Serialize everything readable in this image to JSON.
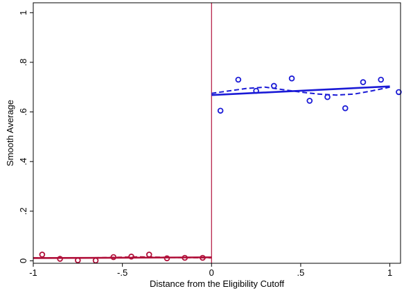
{
  "chart_data": {
    "type": "scatter",
    "title": "",
    "xlabel": "Distance from the Eligibility Cutoff",
    "ylabel": "Smooth Average",
    "xlim": [
      -1,
      1
    ],
    "ylim": [
      0,
      1
    ],
    "x_ticks": [
      -1,
      -0.5,
      0,
      0.5,
      1
    ],
    "x_tick_labels": [
      "-1",
      "-.5",
      "0",
      ".5",
      "1"
    ],
    "y_ticks": [
      0,
      0.2,
      0.4,
      0.6,
      0.8,
      1
    ],
    "y_tick_labels": [
      "0",
      ".2",
      ".4",
      ".6",
      ".8",
      "1"
    ],
    "grid": false,
    "legend": "none",
    "cutoff_x": 0,
    "cutoff_color": "#b0103a",
    "series": [
      {
        "side": "left",
        "color": "#b0103a",
        "points": [
          {
            "x": -0.95,
            "y": 0.025
          },
          {
            "x": -0.85,
            "y": 0.008
          },
          {
            "x": -0.75,
            "y": 0.002
          },
          {
            "x": -0.65,
            "y": 0.001
          },
          {
            "x": -0.55,
            "y": 0.015
          },
          {
            "x": -0.45,
            "y": 0.017
          },
          {
            "x": -0.35,
            "y": 0.025
          },
          {
            "x": -0.25,
            "y": 0.01
          },
          {
            "x": -0.15,
            "y": 0.012
          },
          {
            "x": -0.05,
            "y": 0.012
          }
        ],
        "fit_line": [
          {
            "x": -1,
            "y": 0.011
          },
          {
            "x": 0,
            "y": 0.014
          }
        ],
        "smooth_line": [
          {
            "x": -1,
            "y": 0.012
          },
          {
            "x": -0.8,
            "y": 0.011
          },
          {
            "x": -0.6,
            "y": 0.013
          },
          {
            "x": -0.4,
            "y": 0.016
          },
          {
            "x": -0.2,
            "y": 0.013
          },
          {
            "x": 0,
            "y": 0.012
          }
        ]
      },
      {
        "side": "right",
        "color": "#1a1ad6",
        "points": [
          {
            "x": 0.05,
            "y": 0.605
          },
          {
            "x": 0.15,
            "y": 0.73
          },
          {
            "x": 0.25,
            "y": 0.685
          },
          {
            "x": 0.35,
            "y": 0.705
          },
          {
            "x": 0.45,
            "y": 0.735
          },
          {
            "x": 0.55,
            "y": 0.645
          },
          {
            "x": 0.65,
            "y": 0.66
          },
          {
            "x": 0.75,
            "y": 0.615
          },
          {
            "x": 0.85,
            "y": 0.72
          },
          {
            "x": 0.95,
            "y": 0.73
          },
          {
            "x": 1.05,
            "y": 0.68
          }
        ],
        "fit_line": [
          {
            "x": 0,
            "y": 0.668
          },
          {
            "x": 1,
            "y": 0.703
          }
        ],
        "smooth_line": [
          {
            "x": 0,
            "y": 0.675
          },
          {
            "x": 0.1,
            "y": 0.685
          },
          {
            "x": 0.2,
            "y": 0.695
          },
          {
            "x": 0.3,
            "y": 0.7
          },
          {
            "x": 0.4,
            "y": 0.69
          },
          {
            "x": 0.5,
            "y": 0.68
          },
          {
            "x": 0.6,
            "y": 0.672
          },
          {
            "x": 0.7,
            "y": 0.668
          },
          {
            "x": 0.8,
            "y": 0.672
          },
          {
            "x": 0.9,
            "y": 0.685
          },
          {
            "x": 1.0,
            "y": 0.7
          }
        ]
      }
    ]
  }
}
